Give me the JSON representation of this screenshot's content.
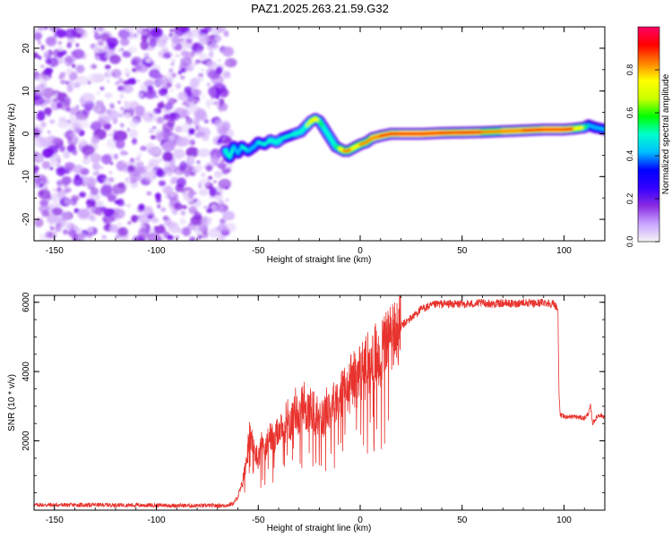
{
  "figure_title": "PAZ1.2025.263.21.59.G32",
  "colorbar": {
    "label": "Normalized spectral amplitude",
    "ticks": [
      0.0,
      0.2,
      0.4,
      0.6,
      0.8
    ],
    "tick_labels": [
      "0.0",
      "0.2",
      "0.4",
      "0.6",
      "0.8"
    ],
    "colormap": [
      "#f4f4f4",
      "#c9a4ff",
      "#8a2be2",
      "#3300ff",
      "#0000ff",
      "#00bfff",
      "#00ffcc",
      "#00ff00",
      "#ccff00",
      "#ffff00",
      "#ff8000",
      "#ff0000",
      "#ff0066"
    ]
  },
  "chart_data": [
    {
      "type": "heatmap",
      "title": "PAZ1.2025.263.21.59.G32",
      "xlabel": "Height of straight line (km)",
      "ylabel": "Frequency (Hz)",
      "xlim": [
        -160,
        120
      ],
      "ylim": [
        -25,
        25
      ],
      "xticks": [
        -150,
        -100,
        -50,
        0,
        50,
        100
      ],
      "xtick_labels": [
        "-150",
        "-100",
        "-50",
        "0",
        "50",
        "100"
      ],
      "yticks": [
        -20,
        -10,
        0,
        10,
        20
      ],
      "ytick_labels": [
        "-20",
        "-10",
        "0",
        "10",
        "20"
      ],
      "noise_region_x": [
        -160,
        -66
      ],
      "ridge": {
        "x": [
          -66,
          -64,
          -62,
          -60,
          -58,
          -55,
          -52,
          -50,
          -47,
          -44,
          -41,
          -38,
          -35,
          -32,
          -29,
          -26,
          -24,
          -22,
          -20,
          -18,
          -16,
          -14,
          -12,
          -10,
          -8,
          -6,
          -4,
          -2,
          0,
          3,
          6,
          10,
          15,
          20,
          30,
          40,
          50,
          60,
          70,
          80,
          90,
          100,
          105,
          110,
          112,
          115,
          120
        ],
        "y": [
          -4,
          -5.5,
          -3,
          -4.5,
          -3,
          -4,
          -3,
          -2,
          -2.5,
          -1.5,
          -2,
          -1,
          -0.5,
          0,
          0.5,
          2,
          3,
          3.5,
          3,
          1.5,
          0,
          -1.5,
          -3,
          -3.5,
          -4,
          -4,
          -3.5,
          -3,
          -2.5,
          -2,
          -1,
          -0.5,
          0,
          0,
          0,
          0.2,
          0.3,
          0.4,
          0.6,
          0.8,
          1,
          1,
          1.2,
          1.5,
          2,
          1.5,
          1
        ],
        "amplitude": [
          0.55,
          0.45,
          0.5,
          0.4,
          0.45,
          0.5,
          0.4,
          0.45,
          0.5,
          0.45,
          0.55,
          0.5,
          0.45,
          0.5,
          0.5,
          0.55,
          0.7,
          0.8,
          0.65,
          0.55,
          0.5,
          0.5,
          0.55,
          0.65,
          0.8,
          0.85,
          0.75,
          0.75,
          0.8,
          0.8,
          0.85,
          0.85,
          0.9,
          0.95,
          0.95,
          0.95,
          0.9,
          0.85,
          0.8,
          0.9,
          0.95,
          0.95,
          0.8,
          0.7,
          0.5,
          0.4,
          0.45
        ]
      }
    },
    {
      "type": "line",
      "xlabel": "Height of straight line (km)",
      "ylabel": "SNR (10 * v/v)",
      "xlim": [
        -160,
        120
      ],
      "ylim": [
        0,
        6200
      ],
      "xticks": [
        -150,
        -100,
        -50,
        0,
        50,
        100
      ],
      "xtick_labels": [
        "-150",
        "-100",
        "-50",
        "0",
        "50",
        "100"
      ],
      "yticks": [
        2000,
        4000,
        6000
      ],
      "ytick_labels": [
        "2000",
        "4000",
        "6000"
      ],
      "series": [
        {
          "name": "SNR",
          "color": "#e8322d",
          "x": [
            -160,
            -140,
            -120,
            -100,
            -80,
            -70,
            -65,
            -62,
            -60,
            -58,
            -56,
            -54,
            -52,
            -50,
            -48,
            -46,
            -44,
            -42,
            -40,
            -38,
            -36,
            -34,
            -32,
            -30,
            -28,
            -26,
            -24,
            -22,
            -20,
            -18,
            -16,
            -14,
            -12,
            -10,
            -8,
            -6,
            -4,
            -2,
            0,
            2,
            4,
            6,
            8,
            10,
            12,
            14,
            16,
            18,
            20,
            22,
            24,
            26,
            28,
            30,
            32,
            35,
            38,
            40,
            45,
            50,
            55,
            60,
            65,
            70,
            75,
            80,
            85,
            90,
            95,
            96,
            97,
            97.5,
            98,
            100,
            105,
            110,
            112,
            113,
            114,
            115,
            117,
            120
          ],
          "y": [
            150,
            150,
            150,
            140,
            130,
            130,
            140,
            200,
            400,
            700,
            1400,
            2200,
            1700,
            1500,
            2000,
            1800,
            2200,
            1900,
            2400,
            2200,
            2700,
            2500,
            3000,
            2600,
            3200,
            2800,
            3000,
            2700,
            2800,
            2600,
            3100,
            2900,
            3300,
            3200,
            3600,
            3300,
            3900,
            3700,
            4100,
            4000,
            4300,
            4200,
            4500,
            4500,
            4800,
            4900,
            5000,
            5200,
            5300,
            5400,
            5500,
            5600,
            5700,
            5800,
            5850,
            5900,
            5950,
            5950,
            5950,
            5950,
            5950,
            5980,
            5950,
            5980,
            5950,
            6000,
            5950,
            6000,
            5950,
            5900,
            5800,
            3500,
            2750,
            2700,
            2700,
            2650,
            2800,
            3000,
            2500,
            2600,
            2750,
            2700
          ]
        }
      ]
    }
  ]
}
